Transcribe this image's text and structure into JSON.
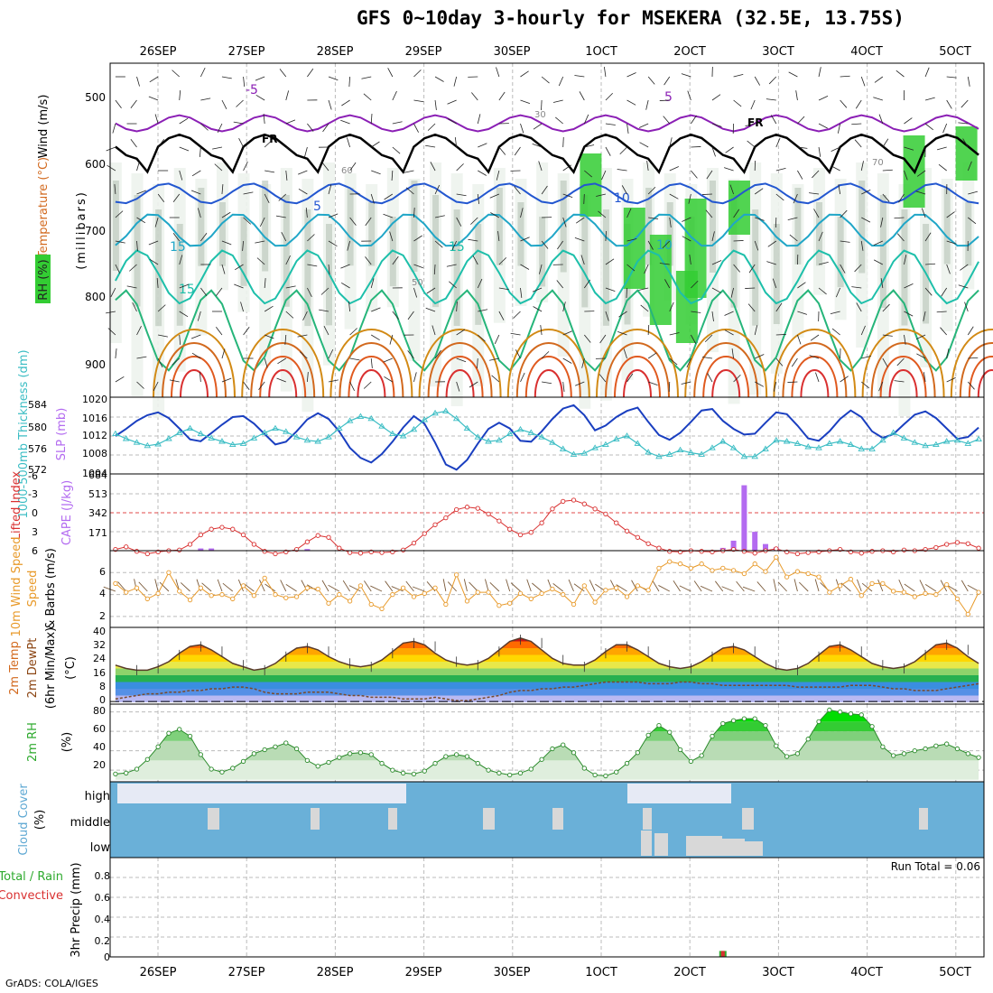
{
  "header": {
    "title": "GFS 0~10day 3-hourly for MSEKERA (32.5E, 13.75S)",
    "credit": "GrADS: COLA/IGES"
  },
  "colors": {
    "rh_green": "#33cc33",
    "rh_gray": "#a9b8a9",
    "temperature": "#d2691e",
    "slp": "#1a3fc0",
    "thickness": "#3bbdc4",
    "cape": "#b36bf0",
    "lifted": "#d93030",
    "wind": "#e89a2a",
    "cloud": "#6ab0d8",
    "freezing": "#000000"
  },
  "chart_data": [
    {
      "type": "contour",
      "panel": "upper_air",
      "ylabel": "(millibars)",
      "yticks": [
        "500",
        "600",
        "700",
        "800",
        "900"
      ],
      "ylim": [
        450,
        950
      ],
      "side_labels": {
        "wind": "Wind (m/s)",
        "temperature": "Temperature (°C)",
        "rh": "RH (%)"
      },
      "x_top": [
        "26SEP",
        "27SEP",
        "28SEP",
        "29SEP",
        "30SEP",
        "1OCT",
        "2OCT",
        "3OCT",
        "4OCT",
        "5OCT"
      ],
      "contour_labels": {
        "temperature": [
          "-5",
          "5",
          "5",
          "10",
          "15",
          "10",
          "15",
          "15"
        ],
        "freezing": "FR",
        "rh": [
          "30",
          "50",
          "60",
          "70"
        ]
      }
    },
    {
      "type": "line",
      "panel": "slp_thickness",
      "left_label": "1000-500mb Thickness (dm)",
      "right_label": "SLP (mb)",
      "left_ticks": [
        "584",
        "580",
        "576",
        "572"
      ],
      "right_ticks": [
        "1020",
        "1016",
        "1012",
        "1008",
        "1004"
      ],
      "series": [
        {
          "name": "SLP",
          "unit": "mb",
          "values": [
            1012.0,
            1013.5,
            1015.2,
            1016.4,
            1017.0,
            1015.8,
            1013.6,
            1011.3,
            1010.9,
            1012.6,
            1014.4,
            1016.0,
            1016.2,
            1014.6,
            1012.4,
            1010.2,
            1010.8,
            1013.0,
            1015.5,
            1016.8,
            1015.6,
            1013.0,
            1009.5,
            1007.4,
            1006.4,
            1008.2,
            1010.8,
            1013.8,
            1016.2,
            1014.6,
            1010.6,
            1006.0,
            1004.9,
            1007.0,
            1010.4,
            1013.5,
            1014.8,
            1013.6,
            1011.0,
            1010.8,
            1013.0,
            1015.6,
            1017.8,
            1018.5,
            1016.4,
            1013.2,
            1014.2,
            1016.0,
            1017.3,
            1018.0,
            1015.0,
            1012.2,
            1011.2,
            1012.7,
            1015.0,
            1017.4,
            1017.7,
            1015.2,
            1013.5,
            1012.3,
            1012.5,
            1014.8,
            1017.0,
            1016.6,
            1014.2,
            1011.5,
            1011.0,
            1013.0,
            1015.6,
            1017.4,
            1016.0,
            1013.0,
            1011.6,
            1012.4,
            1014.5,
            1016.5,
            1017.2,
            1015.8,
            1013.6,
            1011.4,
            1011.8,
            1013.8
          ]
        },
        {
          "name": "Thickness",
          "unit": "dm",
          "values": [
            578.4,
            577.5,
            576.8,
            576.2,
            576.5,
            577.5,
            578.6,
            579.4,
            578.4,
            577.6,
            577.0,
            576.4,
            576.6,
            577.6,
            578.6,
            579.4,
            578.8,
            577.8,
            577.2,
            577.0,
            577.8,
            579.4,
            580.8,
            581.6,
            581.2,
            579.8,
            578.4,
            578.0,
            579.2,
            581.0,
            582.2,
            582.6,
            581.2,
            579.4,
            577.8,
            577.0,
            577.2,
            578.4,
            579.2,
            578.6,
            577.8,
            576.8,
            575.6,
            574.6,
            574.8,
            575.8,
            576.4,
            577.4,
            578.0,
            576.6,
            575.0,
            574.2,
            574.6,
            575.4,
            574.9,
            574.6,
            575.8,
            577.0,
            575.8,
            574.2,
            574.2,
            575.6,
            577.2,
            577.0,
            576.6,
            576.0,
            575.8,
            576.6,
            577.0,
            576.4,
            575.6,
            575.6,
            577.2,
            578.6,
            577.6,
            576.8,
            576.2,
            576.4,
            577.0,
            577.2,
            576.6,
            577.4
          ]
        }
      ]
    },
    {
      "type": "bar_line",
      "panel": "cape_li",
      "left_label": "Lifted Index",
      "right_label": "CAPE (J/kg)",
      "left_ticks": [
        "-6",
        "-3",
        "0",
        "3",
        "6"
      ],
      "right_ticks": [
        "684",
        "513",
        "342",
        "171"
      ],
      "cape_values": [
        0,
        0,
        0,
        0,
        0,
        0,
        0,
        0,
        20,
        20,
        0,
        0,
        0,
        0,
        0,
        0,
        0,
        0,
        15,
        0,
        0,
        0,
        0,
        0,
        0,
        0,
        0,
        0,
        0,
        0,
        0,
        0,
        0,
        0,
        0,
        0,
        0,
        0,
        0,
        0,
        0,
        0,
        0,
        0,
        0,
        0,
        0,
        0,
        0,
        0,
        0,
        0,
        0,
        0,
        0,
        0,
        0,
        25,
        90,
        590,
        170,
        60,
        30,
        0,
        0,
        0,
        0,
        0,
        0,
        0,
        0,
        0,
        0,
        0,
        0,
        0,
        0,
        0,
        0,
        0,
        0,
        0
      ],
      "li_values": [
        5.8,
        5.4,
        6.1,
        6.5,
        6.2,
        6.0,
        5.9,
        5.0,
        3.5,
        2.6,
        2.3,
        2.6,
        3.5,
        5.0,
        6.1,
        6.5,
        6.2,
        5.8,
        4.6,
        3.6,
        3.9,
        5.6,
        6.3,
        6.4,
        6.2,
        6.3,
        6.2,
        5.9,
        4.8,
        3.3,
        1.9,
        0.8,
        -0.5,
        -0.9,
        -0.7,
        0.2,
        1.3,
        2.6,
        3.5,
        3.1,
        1.6,
        -0.6,
        -1.8,
        -2.0,
        -1.4,
        -0.6,
        0.2,
        1.6,
        2.9,
        3.9,
        4.9,
        5.6,
        6.1,
        6.2,
        6.0,
        6.1,
        6.2,
        6.0,
        5.8,
        6.1,
        6.4,
        6.0,
        5.7,
        6.2,
        6.5,
        6.3,
        6.2,
        6.0,
        5.8,
        6.2,
        6.4,
        6.1,
        6.0,
        6.2,
        5.9,
        6.0,
        5.8,
        5.5,
        5.0,
        4.7,
        4.9,
        5.6
      ]
    },
    {
      "type": "line",
      "panel": "wind10m",
      "left_label": "10m Wind Speed",
      "right_label": "& Barbs (m/s)",
      "yticks": [
        "2",
        "4",
        "6"
      ],
      "ylim": [
        1,
        8
      ],
      "values": [
        5.0,
        4.2,
        4.6,
        3.6,
        4.1,
        6.0,
        4.3,
        3.5,
        4.6,
        3.9,
        4.0,
        3.6,
        4.8,
        3.9,
        5.5,
        4.0,
        3.7,
        3.8,
        4.6,
        4.5,
        3.2,
        4.0,
        3.4,
        4.8,
        3.1,
        2.7,
        4.0,
        4.6,
        3.8,
        4.1,
        4.6,
        3.1,
        5.8,
        3.4,
        4.2,
        4.2,
        3.0,
        3.2,
        4.1,
        3.6,
        4.1,
        4.5,
        4.0,
        3.1,
        4.8,
        3.3,
        4.4,
        4.6,
        3.8,
        4.8,
        4.4,
        6.4,
        7.0,
        6.8,
        6.4,
        6.8,
        6.2,
        6.4,
        6.2,
        5.9,
        6.8,
        6.1,
        7.4,
        5.6,
        6.1,
        5.9,
        5.6,
        4.2,
        4.8,
        5.4,
        3.9,
        5.0,
        5.0,
        4.3,
        4.2,
        3.8,
        4.1,
        4.0,
        4.9,
        3.6,
        2.2,
        4.2
      ]
    },
    {
      "type": "area",
      "panel": "temp2m",
      "left_label": "2m Temp",
      "second_label": "2m DewPt",
      "third_label": "(6hr Min/Max)",
      "unit_label": "(°C)",
      "yticks": [
        "0",
        "8",
        "16",
        "24",
        "32",
        "40"
      ],
      "ylim": [
        0,
        40
      ],
      "temperature": [
        22,
        20,
        19,
        19,
        21,
        24,
        29,
        33,
        34,
        31,
        27,
        23,
        21,
        19,
        20,
        23,
        28,
        32,
        33,
        31,
        27,
        24,
        22,
        21,
        22,
        25,
        30,
        35,
        36,
        34,
        29,
        25,
        23,
        22,
        23,
        26,
        31,
        36,
        38,
        36,
        31,
        26,
        23,
        22,
        22,
        25,
        30,
        34,
        34,
        31,
        27,
        23,
        21,
        20,
        21,
        24,
        28,
        32,
        33,
        31,
        27,
        23,
        20,
        19,
        20,
        23,
        28,
        33,
        34,
        31,
        27,
        23,
        21,
        20,
        21,
        24,
        29,
        34,
        35,
        32,
        27,
        23
      ],
      "dewpoint": [
        2,
        3,
        4,
        5,
        5,
        6,
        6,
        7,
        7,
        8,
        8,
        9,
        9,
        8,
        6,
        5,
        5,
        5,
        6,
        6,
        6,
        5,
        4,
        4,
        3,
        3,
        3,
        2,
        2,
        2,
        3,
        2,
        1,
        1,
        2,
        3,
        4,
        6,
        7,
        7,
        8,
        8,
        9,
        9,
        10,
        11,
        12,
        12,
        12,
        12,
        11,
        11,
        11,
        12,
        12,
        11,
        11,
        10,
        10,
        10,
        10,
        10,
        10,
        10,
        9,
        9,
        9,
        9,
        9,
        10,
        10,
        10,
        9,
        8,
        8,
        7,
        7,
        7,
        8,
        9,
        10,
        11
      ]
    },
    {
      "type": "area",
      "panel": "rh2m",
      "left_label": "2m RH",
      "unit_label": "(%)",
      "yticks": [
        "20",
        "40",
        "60",
        "80"
      ],
      "ylim": [
        8,
        88
      ],
      "values": [
        16,
        17,
        21,
        31,
        44,
        58,
        62,
        55,
        36,
        21,
        18,
        22,
        29,
        37,
        41,
        44,
        48,
        42,
        30,
        24,
        28,
        33,
        37,
        38,
        36,
        27,
        20,
        17,
        16,
        19,
        27,
        34,
        36,
        34,
        27,
        20,
        17,
        15,
        17,
        21,
        31,
        42,
        46,
        38,
        22,
        15,
        14,
        18,
        27,
        38,
        56,
        66,
        59,
        41,
        29,
        35,
        55,
        68,
        71,
        73,
        73,
        66,
        45,
        34,
        37,
        52,
        70,
        82,
        80,
        78,
        77,
        65,
        44,
        35,
        37,
        40,
        42,
        45,
        47,
        42,
        37,
        33
      ]
    },
    {
      "type": "heatmap",
      "panel": "cloud",
      "left_label": "Cloud Cover",
      "unit_label": "(%)",
      "rows": [
        "high",
        "middle",
        "low"
      ]
    },
    {
      "type": "bar",
      "panel": "precip",
      "left_label": "Total / Rain",
      "second_label": "Convective",
      "right_label": "3hr Precip (mm)",
      "yticks": [
        "0",
        "0.2",
        "0.4",
        "0.6",
        "0.8"
      ],
      "ylim": [
        0,
        1
      ],
      "run_total": "Run Total = 0.06",
      "bars": [
        {
          "x_index": 57,
          "total": 0.06,
          "convective": 0.06
        }
      ]
    }
  ],
  "x_bottom": [
    "26SEP",
    "27SEP",
    "28SEP",
    "29SEP",
    "30SEP",
    "1OCT",
    "2OCT",
    "3OCT",
    "4OCT",
    "5OCT"
  ]
}
